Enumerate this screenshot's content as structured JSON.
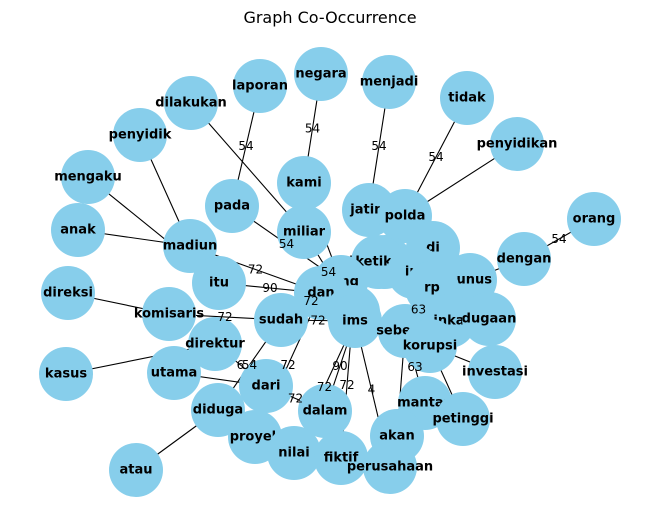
{
  "title": "Graph Co-Occurrence",
  "colors": {
    "node_fill": "#87ceeb",
    "edge": "#000000",
    "background": "#ffffff"
  },
  "nodes": [
    {
      "id": "negara",
      "label": "negara"
    },
    {
      "id": "menjadi",
      "label": "menjadi"
    },
    {
      "id": "laporan",
      "label": "laporan"
    },
    {
      "id": "tidak",
      "label": "tidak"
    },
    {
      "id": "dilakukan",
      "label": "dilakukan"
    },
    {
      "id": "penyidik",
      "label": "penyidik"
    },
    {
      "id": "penyidikan",
      "label": "penyidikan"
    },
    {
      "id": "mengaku",
      "label": "mengaku"
    },
    {
      "id": "kami",
      "label": "kami"
    },
    {
      "id": "pada",
      "label": "pada"
    },
    {
      "id": "jatim",
      "label": "jatim"
    },
    {
      "id": "polda",
      "label": "polda"
    },
    {
      "id": "orang",
      "label": "orang"
    },
    {
      "id": "miliar",
      "label": "miliar"
    },
    {
      "id": "anak",
      "label": "anak"
    },
    {
      "id": "madiun",
      "label": "madiun"
    },
    {
      "id": "di",
      "label": "di"
    },
    {
      "id": "keuangan",
      "label": "keuangan"
    },
    {
      "id": "ketika",
      "label": "ketika"
    },
    {
      "id": "dengan",
      "label": "dengan"
    },
    {
      "id": "ini",
      "label": "ini"
    },
    {
      "id": "yang",
      "label": "yang"
    },
    {
      "id": "yunus",
      "label": "yunus"
    },
    {
      "id": "rp",
      "label": "rp"
    },
    {
      "id": "direksi",
      "label": "direksi"
    },
    {
      "id": "itu",
      "label": "itu"
    },
    {
      "id": "dan",
      "label": "dan"
    },
    {
      "id": "komisaris",
      "label": "komisaris"
    },
    {
      "id": "pt",
      "label": "pt"
    },
    {
      "id": "ims",
      "label": "ims"
    },
    {
      "id": "inka",
      "label": "inka"
    },
    {
      "id": "dugaan",
      "label": "dugaan"
    },
    {
      "id": "sudah",
      "label": "sudah"
    },
    {
      "id": "sebesar",
      "label": "sebesar"
    },
    {
      "id": "direktur",
      "label": "direktur"
    },
    {
      "id": "korupsi",
      "label": "korupsi"
    },
    {
      "id": "kasus",
      "label": "kasus"
    },
    {
      "id": "utama",
      "label": "utama"
    },
    {
      "id": "investasi",
      "label": "investasi"
    },
    {
      "id": "dari",
      "label": "dari"
    },
    {
      "id": "mantan",
      "label": "mantan"
    },
    {
      "id": "diduga",
      "label": "diduga"
    },
    {
      "id": "dalam",
      "label": "dalam"
    },
    {
      "id": "petinggi",
      "label": "petinggi"
    },
    {
      "id": "proyek",
      "label": "proyek"
    },
    {
      "id": "akan",
      "label": "akan"
    },
    {
      "id": "nilai",
      "label": "nilai"
    },
    {
      "id": "fiktif",
      "label": "fiktif"
    },
    {
      "id": "perusahaan",
      "label": "perusahaan"
    },
    {
      "id": "atau",
      "label": "atau"
    }
  ],
  "edges": [
    {
      "source": "laporan",
      "target": "pada",
      "weight": "54"
    },
    {
      "source": "negara",
      "target": "kami",
      "weight": "54"
    },
    {
      "source": "menjadi",
      "target": "jatim",
      "weight": "54"
    },
    {
      "source": "tidak",
      "target": "polda",
      "weight": "54"
    },
    {
      "source": "penyidikan",
      "target": "polda",
      "weight": ""
    },
    {
      "source": "orang",
      "target": "dengan",
      "weight": "54"
    },
    {
      "source": "dilakukan",
      "target": "miliar",
      "weight": ""
    },
    {
      "source": "penyidik",
      "target": "madiun",
      "weight": ""
    },
    {
      "source": "mengaku",
      "target": "itu",
      "weight": ""
    },
    {
      "source": "anak",
      "target": "madiun",
      "weight": ""
    },
    {
      "source": "direksi",
      "target": "komisaris",
      "weight": ""
    },
    {
      "source": "kasus",
      "target": "direktur",
      "weight": ""
    },
    {
      "source": "atau",
      "target": "diduga",
      "weight": ""
    },
    {
      "source": "madiun",
      "target": "dan",
      "weight": "72"
    },
    {
      "source": "itu",
      "target": "dan",
      "weight": "90"
    },
    {
      "source": "pada",
      "target": "yang",
      "weight": "54"
    },
    {
      "source": "kami",
      "target": "yang",
      "weight": ""
    },
    {
      "source": "miliar",
      "target": "pt",
      "weight": "54"
    },
    {
      "source": "jatim",
      "target": "ketika",
      "weight": ""
    },
    {
      "source": "polda",
      "target": "di",
      "weight": ""
    },
    {
      "source": "komisaris",
      "target": "sudah",
      "weight": "72"
    },
    {
      "source": "sudah",
      "target": "yang",
      "weight": "72"
    },
    {
      "source": "sudah",
      "target": "ims",
      "weight": "72"
    },
    {
      "source": "direktur",
      "target": "dari",
      "weight": "6"
    },
    {
      "source": "dari",
      "target": "dalam",
      "weight": "72"
    },
    {
      "source": "diduga",
      "target": "sudah",
      "weight": "54"
    },
    {
      "source": "proyek",
      "target": "dan",
      "weight": "72"
    },
    {
      "source": "nilai",
      "target": "ims",
      "weight": "72"
    },
    {
      "source": "fiktif",
      "target": "pt",
      "weight": "72"
    },
    {
      "source": "dalam",
      "target": "ims",
      "weight": "90"
    },
    {
      "source": "perusahaan",
      "target": "pt",
      "weight": "4"
    },
    {
      "source": "akan",
      "target": "sebesar",
      "weight": ""
    },
    {
      "source": "mantan",
      "target": "sebesar",
      "weight": "63"
    },
    {
      "source": "investasi",
      "target": "korupsi",
      "weight": ""
    },
    {
      "source": "petinggi",
      "target": "korupsi",
      "weight": ""
    },
    {
      "source": "rp",
      "target": "sebesar",
      "weight": "63"
    },
    {
      "source": "yunus",
      "target": "dugaan",
      "weight": ""
    },
    {
      "source": "dengan",
      "target": "yunus",
      "weight": ""
    },
    {
      "source": "ini",
      "target": "keuangan",
      "weight": ""
    },
    {
      "source": "di",
      "target": "keuangan",
      "weight": ""
    },
    {
      "source": "utama",
      "target": "dari",
      "weight": ""
    },
    {
      "source": "inka",
      "target": "sebesar",
      "weight": ""
    }
  ]
}
